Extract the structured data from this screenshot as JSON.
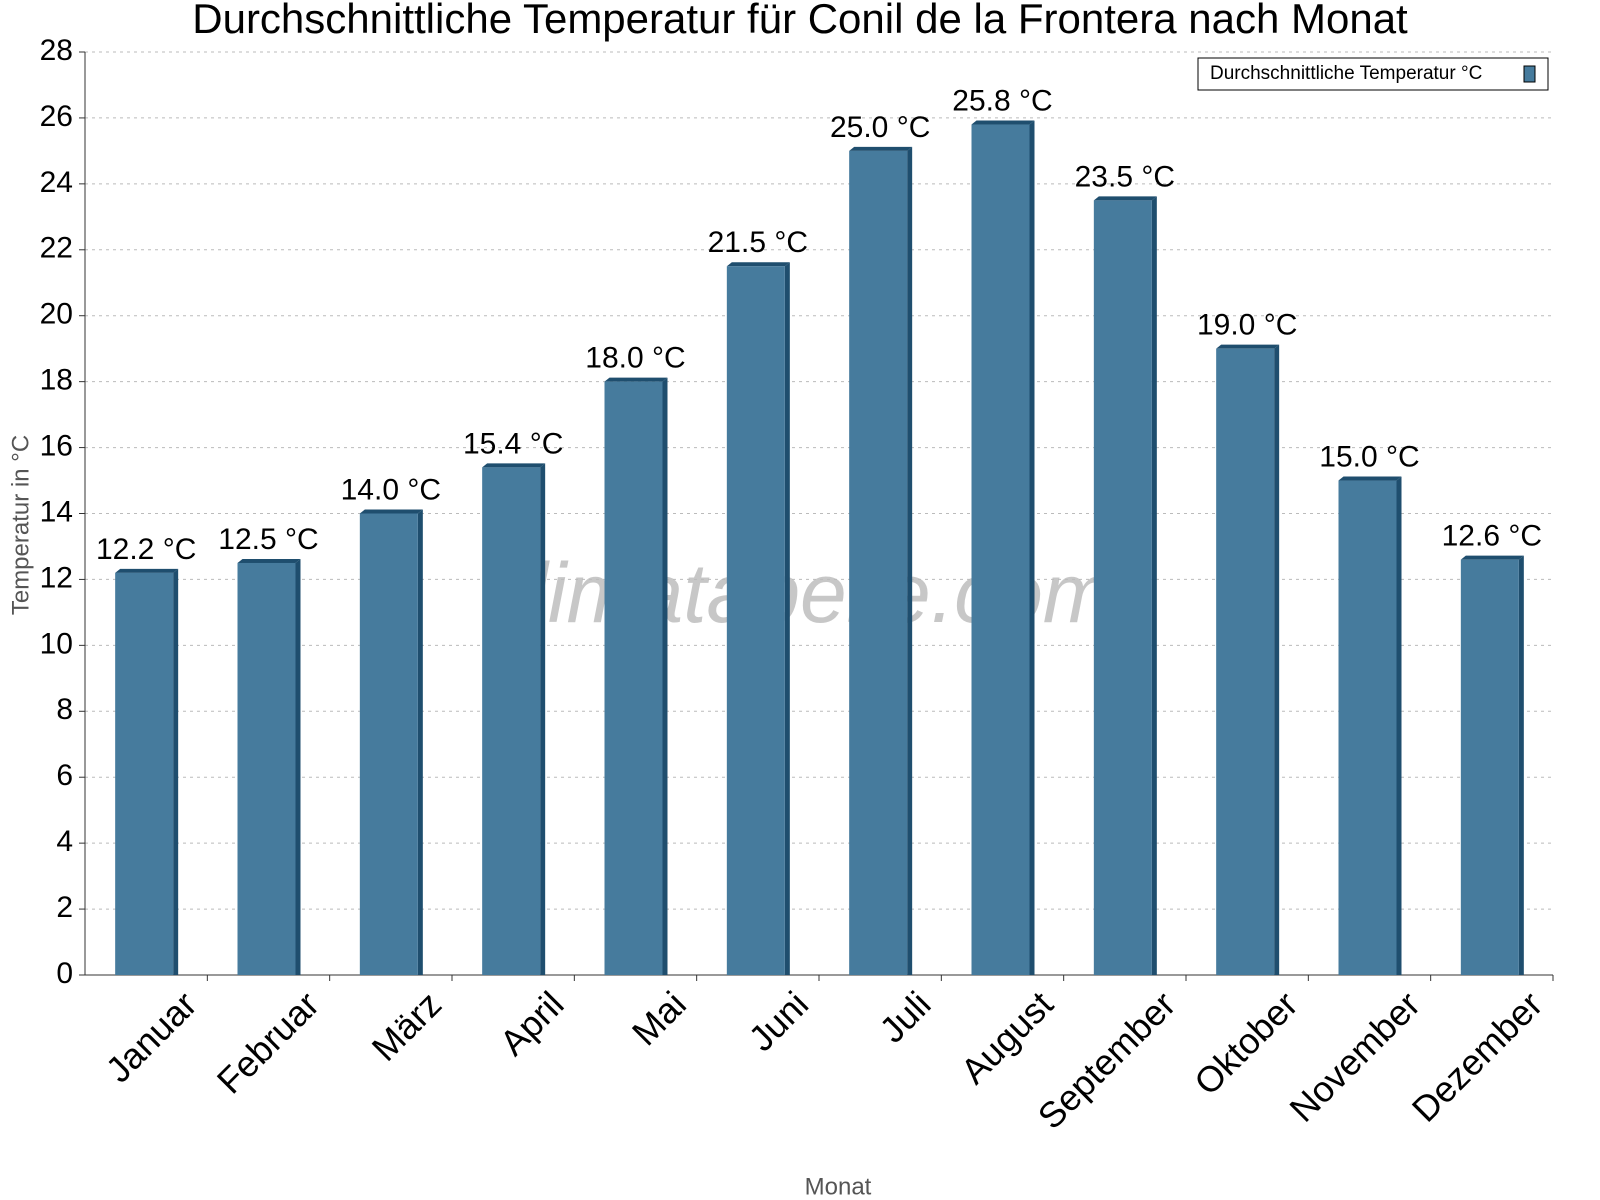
{
  "chart_data": {
    "type": "bar",
    "title": "Durchschnittliche Temperatur für Conil de la Frontera nach Monat",
    "watermark": "klimatabelle.com",
    "x_label": "Monat",
    "y_label": "Temperatur in °C",
    "categories": [
      "Januar",
      "Februar",
      "März",
      "April",
      "Mai",
      "Juni",
      "Juli",
      "August",
      "September",
      "Oktober",
      "November",
      "Dezember"
    ],
    "series": [
      {
        "name": "Durchschnittliche Temperatur °C",
        "color": "#467b9d",
        "side_color": "#1f4e6e",
        "values": [
          12.2,
          12.5,
          14.0,
          15.4,
          18.0,
          21.5,
          25.0,
          25.8,
          23.5,
          19.0,
          15.0,
          12.6
        ],
        "value_labels": [
          "12.2 °C",
          "12.5 °C",
          "14.0 °C",
          "15.4 °C",
          "18.0 °C",
          "21.5 °C",
          "25.0 °C",
          "25.8 °C",
          "23.5 °C",
          "19.0 °C",
          "15.0 °C",
          "12.6 °C"
        ]
      }
    ],
    "ylim": [
      0,
      28
    ],
    "yticks": [
      0,
      2,
      4,
      6,
      8,
      10,
      12,
      14,
      16,
      18,
      20,
      22,
      24,
      26,
      28
    ],
    "grid": true,
    "legend": "top-right"
  }
}
